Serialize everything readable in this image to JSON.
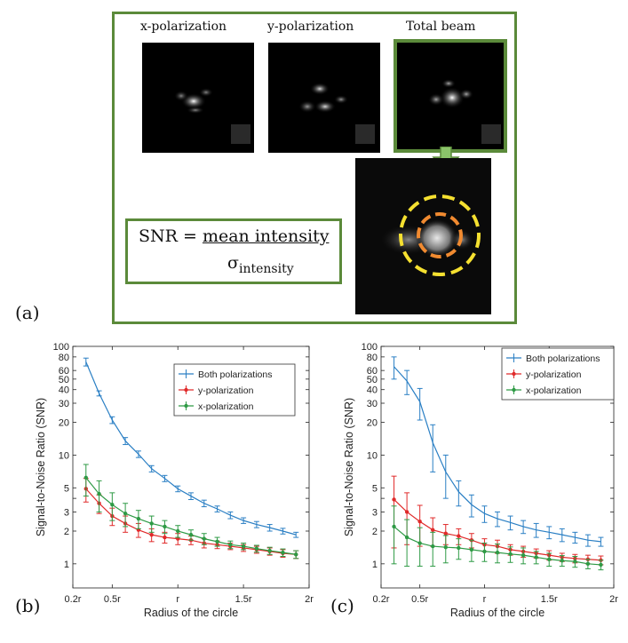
{
  "panel_a": {
    "label": "(a)",
    "images": [
      {
        "label": "x-polarization"
      },
      {
        "label": "y-polarization"
      },
      {
        "label": "Total beam"
      }
    ],
    "formula": {
      "lhs": "SNR = ",
      "numerator": "mean intensity",
      "denominator_symbol": "σ",
      "denominator_sub": "intensity"
    },
    "colors": {
      "frame": "#5b8a3a",
      "outer_circle": "#f5e030",
      "inner_circle": "#f08a30"
    }
  },
  "panel_b_label": "(b)",
  "panel_c_label": "(c)",
  "chart_data": [
    {
      "type": "line",
      "panel": "(b)",
      "xlabel": "Radius of the circle",
      "ylabel": "Signal-to-Noise Ratio (SNR)",
      "x_tick_labels": [
        "0.2r",
        "0.5r",
        "r",
        "1.5r",
        "2r"
      ],
      "x_ticks": [
        0.2,
        0.5,
        1.0,
        1.5,
        2.0
      ],
      "xlim": [
        0.2,
        2.0
      ],
      "y_scale": "log",
      "ylim": [
        0.6,
        100
      ],
      "y_ticks": [
        1,
        2,
        3,
        4,
        5,
        10,
        20,
        30,
        40,
        50,
        60,
        80,
        100
      ],
      "y_tick_labels": [
        "1",
        "2",
        "3",
        "",
        "5",
        "10",
        "20",
        "30",
        "40",
        "50",
        "60",
        "80",
        "100"
      ],
      "legend_position": "top-right",
      "x": [
        0.3,
        0.4,
        0.5,
        0.6,
        0.7,
        0.8,
        0.9,
        1.0,
        1.1,
        1.2,
        1.3,
        1.4,
        1.5,
        1.6,
        1.7,
        1.8,
        1.9
      ],
      "series": [
        {
          "name": "Both polarizations",
          "color": "#2a7fc4",
          "values": [
            72,
            37,
            21,
            13.5,
            10.2,
            7.5,
            6.1,
            4.9,
            4.2,
            3.6,
            3.2,
            2.8,
            2.5,
            2.3,
            2.15,
            2.0,
            1.85
          ],
          "errors": [
            6,
            2,
            1.5,
            1,
            0.7,
            0.5,
            0.4,
            0.3,
            0.3,
            0.25,
            0.2,
            0.2,
            0.15,
            0.15,
            0.15,
            0.12,
            0.1
          ]
        },
        {
          "name": "y-polarization",
          "color": "#e02a2a",
          "values": [
            4.9,
            3.6,
            2.75,
            2.35,
            2.05,
            1.85,
            1.75,
            1.7,
            1.65,
            1.55,
            1.5,
            1.45,
            1.4,
            1.35,
            1.3,
            1.25,
            1.22
          ],
          "errors": [
            1.2,
            0.7,
            0.5,
            0.4,
            0.3,
            0.25,
            0.2,
            0.2,
            0.15,
            0.15,
            0.12,
            0.1,
            0.1,
            0.1,
            0.1,
            0.1,
            0.1
          ]
        },
        {
          "name": "x-polarization",
          "color": "#2e9a45",
          "values": [
            6.2,
            4.4,
            3.5,
            2.9,
            2.6,
            2.35,
            2.2,
            2.0,
            1.85,
            1.7,
            1.6,
            1.5,
            1.45,
            1.38,
            1.32,
            1.27,
            1.22
          ],
          "errors": [
            2.0,
            1.4,
            1.0,
            0.7,
            0.5,
            0.4,
            0.3,
            0.25,
            0.2,
            0.2,
            0.15,
            0.12,
            0.1,
            0.1,
            0.1,
            0.1,
            0.1
          ]
        }
      ]
    },
    {
      "type": "line",
      "panel": "(c)",
      "xlabel": "Radius of the circle",
      "ylabel": "Signal-to-Noise Ratio (SNR)",
      "x_tick_labels": [
        "0.2r",
        "0.5r",
        "r",
        "1.5r",
        "2r"
      ],
      "x_ticks": [
        0.2,
        0.5,
        1.0,
        1.5,
        2.0
      ],
      "xlim": [
        0.2,
        2.0
      ],
      "y_scale": "log",
      "ylim": [
        0.6,
        100
      ],
      "y_ticks": [
        1,
        2,
        3,
        4,
        5,
        10,
        20,
        30,
        40,
        50,
        60,
        80,
        100
      ],
      "y_tick_labels": [
        "1",
        "2",
        "3",
        "",
        "5",
        "10",
        "20",
        "30",
        "40",
        "50",
        "60",
        "80",
        "100"
      ],
      "legend_position": "top-right",
      "x": [
        0.3,
        0.4,
        0.5,
        0.6,
        0.7,
        0.8,
        0.9,
        1.0,
        1.1,
        1.2,
        1.3,
        1.4,
        1.5,
        1.6,
        1.7,
        1.8,
        1.9
      ],
      "series": [
        {
          "name": "Both polarizations",
          "color": "#2a7fc4",
          "values": [
            65,
            48,
            31,
            13,
            7,
            4.6,
            3.5,
            2.9,
            2.6,
            2.4,
            2.2,
            2.05,
            1.95,
            1.85,
            1.75,
            1.65,
            1.6
          ],
          "errors": [
            15,
            12,
            10,
            6,
            3,
            1.2,
            0.8,
            0.5,
            0.4,
            0.35,
            0.3,
            0.3,
            0.25,
            0.25,
            0.2,
            0.2,
            0.15
          ]
        },
        {
          "name": "y-polarization",
          "color": "#e02a2a",
          "values": [
            3.9,
            3.0,
            2.45,
            2.05,
            1.9,
            1.8,
            1.65,
            1.5,
            1.45,
            1.35,
            1.3,
            1.25,
            1.2,
            1.15,
            1.12,
            1.1,
            1.08
          ],
          "errors": [
            2.5,
            1.5,
            1.0,
            0.6,
            0.4,
            0.3,
            0.25,
            0.2,
            0.2,
            0.15,
            0.15,
            0.12,
            0.12,
            0.1,
            0.1,
            0.1,
            0.1
          ]
        },
        {
          "name": "x-polarization",
          "color": "#2e9a45",
          "values": [
            2.2,
            1.75,
            1.55,
            1.45,
            1.42,
            1.4,
            1.35,
            1.3,
            1.27,
            1.23,
            1.2,
            1.15,
            1.1,
            1.07,
            1.05,
            1.0,
            0.98
          ],
          "errors": [
            1.2,
            0.8,
            0.6,
            0.5,
            0.4,
            0.3,
            0.3,
            0.25,
            0.25,
            0.2,
            0.2,
            0.15,
            0.15,
            0.12,
            0.12,
            0.1,
            0.1
          ]
        }
      ]
    }
  ]
}
